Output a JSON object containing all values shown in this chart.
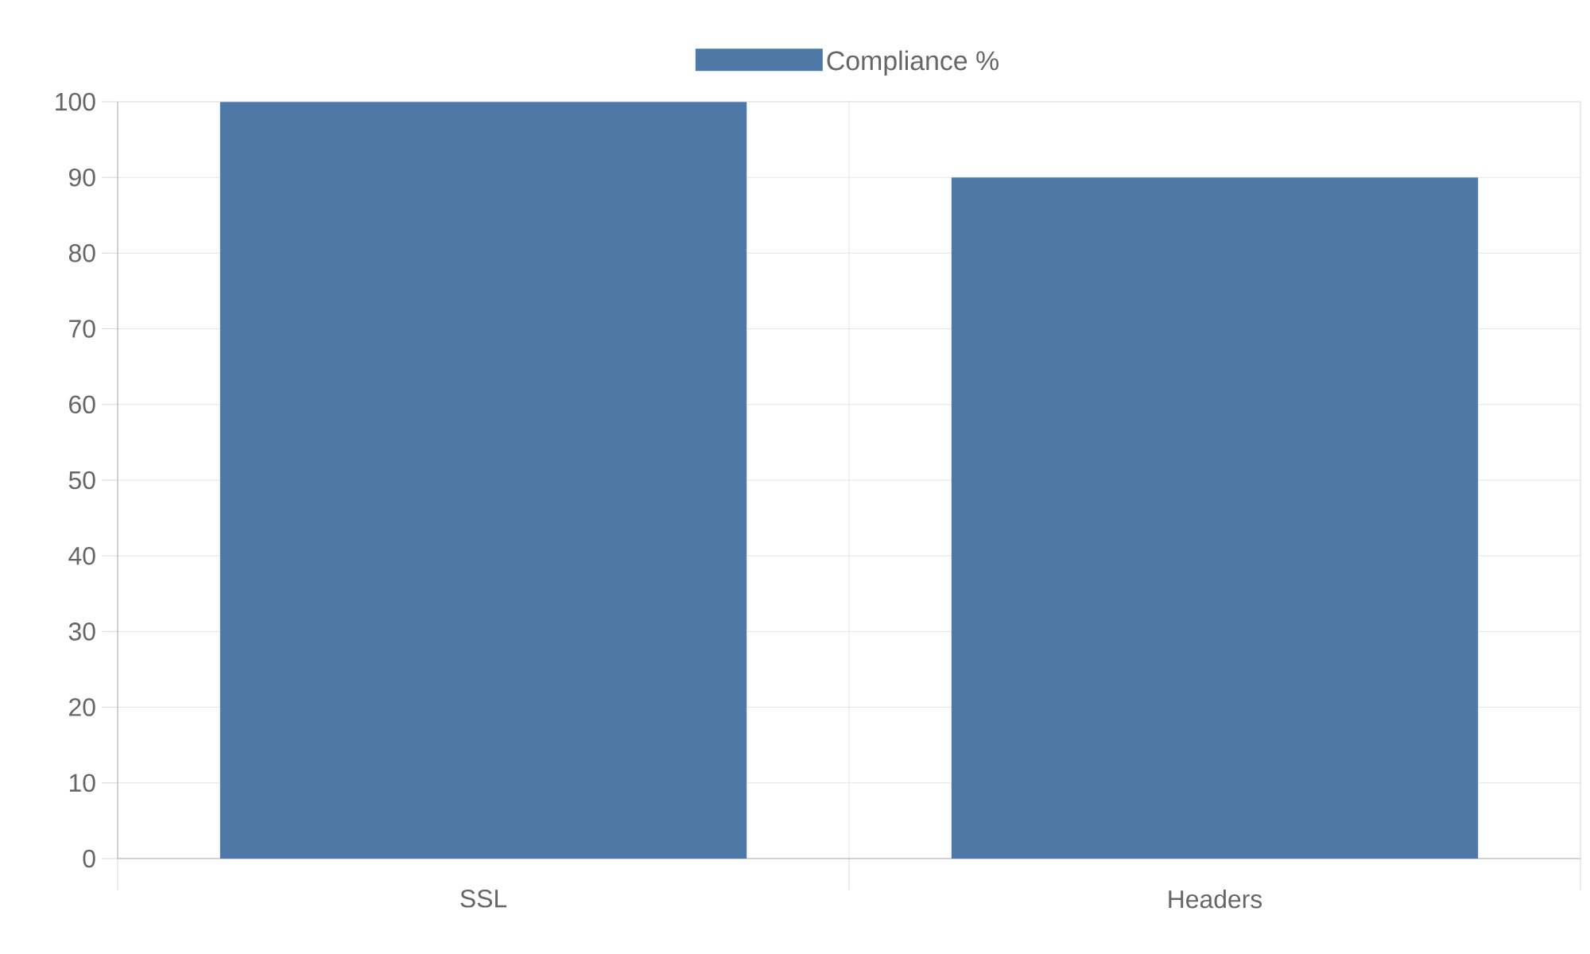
{
  "chart_data": {
    "type": "bar",
    "categories": [
      "SSL",
      "Headers"
    ],
    "series": [
      {
        "name": "Compliance %",
        "color": "#4e79a7",
        "values": [
          100,
          90
        ]
      }
    ],
    "ylim": [
      0,
      100
    ],
    "yticks": [
      0,
      10,
      20,
      30,
      40,
      50,
      60,
      70,
      80,
      90,
      100
    ],
    "grid": true,
    "legend": "top"
  }
}
